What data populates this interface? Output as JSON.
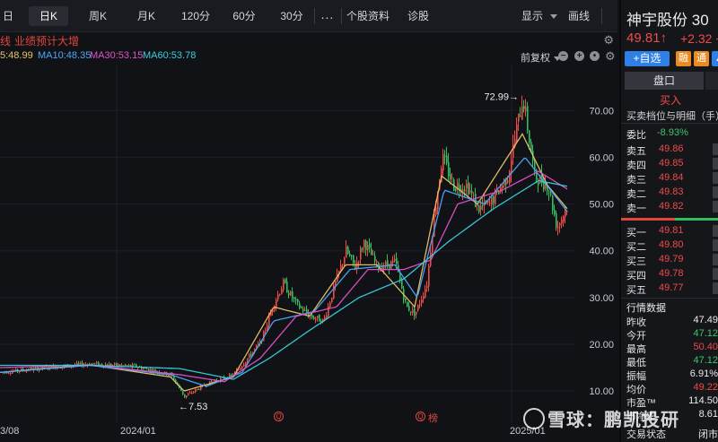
{
  "toolbar": {
    "tabs": [
      {
        "label": "日"
      },
      {
        "label": "日K"
      },
      {
        "label": "周K"
      },
      {
        "label": "月K"
      },
      {
        "label": "120分"
      },
      {
        "label": "60分"
      },
      {
        "label": "30分"
      },
      {
        "label": "..."
      },
      {
        "label": "个股资料"
      },
      {
        "label": "诊股"
      },
      {
        "label": "显示"
      },
      {
        "label": "画线"
      }
    ],
    "active_index": 1
  },
  "event": {
    "cut_char": "线",
    "text": "业绩预计大增"
  },
  "ma_legend": {
    "ma5": "5:48.99",
    "ma10": "MA10:48.35",
    "ma30": "MA30:53.15",
    "ma60": "MA60:53.78",
    "adjust": "前复权",
    "colors": {
      "ma5": "#e9c46a",
      "ma10": "#4aa8ff",
      "ma30": "#e052c8",
      "ma60": "#38d0e0"
    }
  },
  "chart_data": {
    "type": "candlestick",
    "y_ticks": [
      "70.00",
      "60.00",
      "50.00",
      "40.00",
      "30.00",
      "20.00",
      "10.00"
    ],
    "ylim": [
      6,
      76
    ],
    "x_labels": [
      "3/08",
      "2024/01",
      "2025/01"
    ],
    "high_annotation": "72.99",
    "low_annotation": "7.53",
    "price_path": [
      [
        0,
        14
      ],
      [
        60,
        15.2
      ],
      [
        100,
        15.8
      ],
      [
        150,
        15.3
      ],
      [
        190,
        13.5
      ],
      [
        205,
        8.8
      ],
      [
        230,
        11.6
      ],
      [
        260,
        13.5
      ],
      [
        290,
        20.5
      ],
      [
        305,
        29
      ],
      [
        315,
        33
      ],
      [
        330,
        28.5
      ],
      [
        345,
        26
      ],
      [
        360,
        25
      ],
      [
        373,
        33
      ],
      [
        385,
        40
      ],
      [
        395,
        36.5
      ],
      [
        405,
        42
      ],
      [
        420,
        36.5
      ],
      [
        440,
        37.5
      ],
      [
        452,
        28
      ],
      [
        462,
        26.5
      ],
      [
        475,
        33
      ],
      [
        482,
        46
      ],
      [
        492,
        60
      ],
      [
        505,
        54
      ],
      [
        520,
        54
      ],
      [
        532,
        49
      ],
      [
        545,
        50
      ],
      [
        565,
        56
      ],
      [
        582,
        72.99
      ],
      [
        595,
        56
      ],
      [
        610,
        54
      ],
      [
        620,
        45
      ],
      [
        632,
        49.8
      ]
    ],
    "ma_series": [
      {
        "name": "MA5",
        "values": [
          [
            0,
            14
          ],
          [
            100,
            15.6
          ],
          [
            190,
            13
          ],
          [
            205,
            10
          ],
          [
            260,
            13
          ],
          [
            305,
            28
          ],
          [
            345,
            26
          ],
          [
            385,
            37
          ],
          [
            420,
            37
          ],
          [
            462,
            28
          ],
          [
            492,
            56
          ],
          [
            532,
            50
          ],
          [
            582,
            65
          ],
          [
            610,
            54
          ],
          [
            632,
            49
          ]
        ]
      },
      {
        "name": "MA10",
        "values": [
          [
            0,
            14
          ],
          [
            100,
            15.5
          ],
          [
            190,
            13.5
          ],
          [
            230,
            11
          ],
          [
            270,
            14
          ],
          [
            305,
            25
          ],
          [
            350,
            27
          ],
          [
            390,
            36
          ],
          [
            440,
            37
          ],
          [
            465,
            30
          ],
          [
            495,
            53
          ],
          [
            540,
            50
          ],
          [
            585,
            60
          ],
          [
            632,
            48.4
          ]
        ]
      },
      {
        "name": "MA30",
        "values": [
          [
            0,
            15
          ],
          [
            100,
            15.6
          ],
          [
            200,
            13.5
          ],
          [
            250,
            12
          ],
          [
            290,
            17
          ],
          [
            330,
            26
          ],
          [
            375,
            28
          ],
          [
            410,
            36
          ],
          [
            450,
            36
          ],
          [
            480,
            38
          ],
          [
            510,
            50
          ],
          [
            560,
            53
          ],
          [
            600,
            57
          ],
          [
            632,
            53.2
          ]
        ]
      },
      {
        "name": "MA60",
        "values": [
          [
            0,
            15.5
          ],
          [
            100,
            15.5
          ],
          [
            200,
            14.8
          ],
          [
            260,
            12.5
          ],
          [
            300,
            17
          ],
          [
            345,
            23
          ],
          [
            400,
            30
          ],
          [
            450,
            34
          ],
          [
            500,
            42
          ],
          [
            550,
            49
          ],
          [
            600,
            55
          ],
          [
            632,
            53.8
          ]
        ]
      }
    ]
  },
  "markers": {
    "q1": "Q",
    "q2": "Q",
    "q2_text": "榜"
  },
  "panel": {
    "name": "神宇股份",
    "code_fragment": "30",
    "price": "49.81↑",
    "change": "+2.32",
    "change_tail": "+",
    "add_label": "+自选",
    "tags": [
      {
        "label": "融",
        "color": "#e98b20"
      },
      {
        "label": "通",
        "color": "#e98b20"
      },
      {
        "label": "▲",
        "color": "#2e7fe6"
      }
    ],
    "tab_active": "盘口",
    "buy_header": "买入",
    "sub_title": "买卖档位与明细（手）",
    "weibi_label": "委比",
    "weibi_value": "-8.93%",
    "asks": [
      {
        "label": "卖五",
        "price": "49.86"
      },
      {
        "label": "卖四",
        "price": "49.85"
      },
      {
        "label": "卖三",
        "price": "49.84"
      },
      {
        "label": "卖二",
        "price": "49.83"
      },
      {
        "label": "卖一",
        "price": "49.82"
      }
    ],
    "bids": [
      {
        "label": "买一",
        "price": "49.81"
      },
      {
        "label": "买二",
        "price": "49.80"
      },
      {
        "label": "买三",
        "price": "49.79"
      },
      {
        "label": "买四",
        "price": "49.78"
      },
      {
        "label": "买五",
        "price": "49.77"
      }
    ],
    "market_title": "行情数据",
    "stats": [
      {
        "label": "昨收",
        "value": "47.49",
        "color": "white"
      },
      {
        "label": "今开",
        "value": "47.12",
        "color": "green"
      },
      {
        "label": "最高",
        "value": "50.40",
        "color": "red"
      },
      {
        "label": "最低",
        "value": "47.12",
        "color": "green"
      },
      {
        "label": "振幅",
        "value": "6.91%",
        "color": "white"
      },
      {
        "label": "均价",
        "value": "49.22",
        "color": "red"
      },
      {
        "label": "市盈™",
        "value": "114.50",
        "color": "white"
      },
      {
        "label": "市净率",
        "value": "8.61",
        "color": "white"
      },
      {
        "label": "交易状态",
        "value": "闭市",
        "color": "white"
      }
    ]
  },
  "watermark": "雪球：鹏凯投研"
}
